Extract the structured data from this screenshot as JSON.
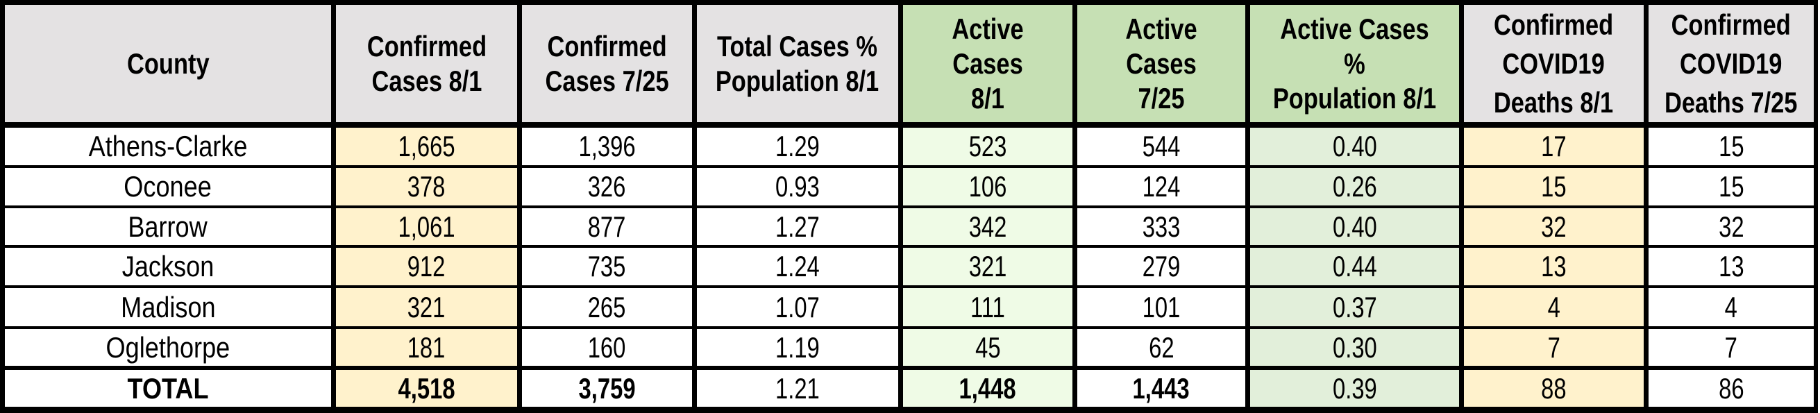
{
  "table": {
    "headers": [
      "County",
      "Confirmed\nCases 8/1",
      "Confirmed\nCases 7/25",
      "Total Cases %\nPopulation 8/1",
      "Active Cases\n8/1",
      "Active Cases\n7/25",
      "Active Cases %\nPopulation 8/1",
      "Confirmed\nCOVID19\nDeaths 8/1",
      "Confirmed\nCOVID19\nDeaths 7/25"
    ],
    "rows": [
      [
        "Athens-Clarke",
        "1,665",
        "1,396",
        "1.29",
        "523",
        "544",
        "0.40",
        "17",
        "15"
      ],
      [
        "Oconee",
        "378",
        "326",
        "0.93",
        "106",
        "124",
        "0.26",
        "15",
        "15"
      ],
      [
        "Barrow",
        "1,061",
        "877",
        "1.27",
        "342",
        "333",
        "0.40",
        "32",
        "32"
      ],
      [
        "Jackson",
        "912",
        "735",
        "1.24",
        "321",
        "279",
        "0.44",
        "13",
        "13"
      ],
      [
        "Madison",
        "321",
        "265",
        "1.07",
        "111",
        "101",
        "0.37",
        "4",
        "4"
      ],
      [
        "Oglethorpe",
        "181",
        "160",
        "1.19",
        "45",
        "62",
        "0.30",
        "7",
        "7"
      ]
    ],
    "total": [
      "TOTAL",
      "4,518",
      "3,759",
      "1.21",
      "1,448",
      "1,443",
      "0.39",
      "88",
      "86"
    ]
  },
  "colors": {
    "border": "#000000",
    "header_gray": "#e4e2e3",
    "header_green": "#c6e0b4",
    "highlight_yellow": "#fff2cc",
    "highlight_light_green": "#effbe6",
    "highlight_mid_green": "#e2efda"
  }
}
